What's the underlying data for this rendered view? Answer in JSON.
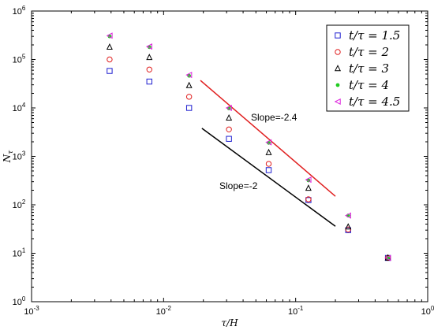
{
  "chart_data": {
    "type": "scatter",
    "xscale": "log",
    "yscale": "log",
    "xlim": [
      0.001,
      1
    ],
    "ylim": [
      1,
      1000000
    ],
    "xlabel": "τ/H",
    "ylabel": "N",
    "ylabel_sub": "τ",
    "grid": false,
    "legend_position": "top-right",
    "x_ticks": [
      0.001,
      0.01,
      0.1,
      1
    ],
    "x_tick_labels": [
      {
        "base": "10",
        "exp": "-3"
      },
      {
        "base": "10",
        "exp": "-2"
      },
      {
        "base": "10",
        "exp": "-1"
      },
      {
        "base": "10",
        "exp": "0"
      }
    ],
    "y_ticks": [
      1,
      10,
      100,
      1000,
      10000,
      100000,
      1000000
    ],
    "y_tick_labels": [
      {
        "base": "10",
        "exp": "0"
      },
      {
        "base": "10",
        "exp": "1"
      },
      {
        "base": "10",
        "exp": "2"
      },
      {
        "base": "10",
        "exp": "3"
      },
      {
        "base": "10",
        "exp": "4"
      },
      {
        "base": "10",
        "exp": "5"
      },
      {
        "base": "10",
        "exp": "6"
      }
    ],
    "series": [
      {
        "name": "t/τ = 1.5",
        "marker": "square",
        "color": "#1f1fd0",
        "x": [
          0.0039,
          0.0078,
          0.0156,
          0.03125,
          0.0625,
          0.125,
          0.25,
          0.5
        ],
        "y": [
          58000,
          35000,
          10000,
          2300,
          520,
          125,
          30,
          8
        ]
      },
      {
        "name": "t/τ = 2",
        "marker": "circle",
        "color": "#e02020",
        "x": [
          0.0039,
          0.0078,
          0.0156,
          0.03125,
          0.0625,
          0.125,
          0.25,
          0.5
        ],
        "y": [
          100000,
          62000,
          17000,
          3600,
          700,
          130,
          31,
          8
        ]
      },
      {
        "name": "t/τ = 3",
        "marker": "triangle-up",
        "color": "#000000",
        "x": [
          0.0039,
          0.0078,
          0.0156,
          0.03125,
          0.0625,
          0.125,
          0.25,
          0.5
        ],
        "y": [
          180000,
          110000,
          29000,
          6200,
          1200,
          220,
          35,
          8
        ]
      },
      {
        "name": "t/τ = 4",
        "marker": "dot",
        "color": "#22cc22",
        "x": [
          0.0039,
          0.0078,
          0.0156,
          0.03125,
          0.0625,
          0.125,
          0.25,
          0.5
        ],
        "y": [
          300000,
          180000,
          46000,
          9800,
          1900,
          320,
          60,
          8
        ]
      },
      {
        "name": "t/τ = 4.5",
        "marker": "triangle-left",
        "color": "#dd22dd",
        "x": [
          0.0039,
          0.0078,
          0.0156,
          0.03125,
          0.0625,
          0.125,
          0.25,
          0.5
        ],
        "y": [
          310000,
          185000,
          48000,
          10000,
          1950,
          330,
          60,
          8
        ]
      }
    ],
    "reference_lines": [
      {
        "label": "Slope=-2.4",
        "color": "#e02020",
        "x": [
          0.019,
          0.2
        ],
        "y": [
          37000,
          150
        ]
      },
      {
        "label": "Slope=-2",
        "color": "#000000",
        "x": [
          0.0195,
          0.2
        ],
        "y": [
          3800,
          36
        ]
      }
    ]
  }
}
